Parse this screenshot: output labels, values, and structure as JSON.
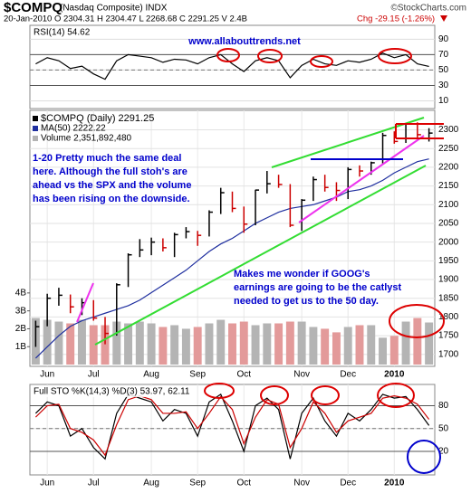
{
  "header": {
    "symbol": "$COMPQ",
    "name": "(Nasdaq Composite) INDX",
    "credit": "©StockCharts.com",
    "quote": "20-Jan-2010 O 2304.31 H 2304.47 L 2268.68 C 2291.25 V 2.4B",
    "change": "Chg -29.15 (-1.26%)"
  },
  "chart_data": [
    {
      "type": "line",
      "label": "RSI(14) 54.62",
      "annotation": "www.allabouttrends.net",
      "ylim": [
        0,
        108
      ],
      "yticks": [
        10,
        30,
        50,
        70,
        90
      ],
      "guides": [
        30,
        70
      ],
      "midline": 50,
      "series": [
        {
          "color": "#000000",
          "values": [
            58,
            66,
            62,
            52,
            55,
            45,
            38,
            62,
            70,
            68,
            66,
            60,
            64,
            63,
            58,
            66,
            70,
            58,
            48,
            62,
            66,
            62,
            40,
            56,
            64,
            58,
            56,
            62,
            60,
            64,
            72,
            66,
            70,
            58,
            54.62
          ]
        }
      ]
    },
    {
      "type": "ohlc",
      "categories": [
        null,
        "Jun",
        null,
        null,
        null,
        "Jul",
        null,
        null,
        null,
        null,
        "Aug",
        null,
        null,
        null,
        "Sep",
        null,
        null,
        null,
        "Oct",
        null,
        null,
        null,
        null,
        "Nov",
        null,
        null,
        null,
        "Dec",
        null,
        null,
        null,
        "2010",
        null,
        null,
        null
      ],
      "ylim": [
        1668,
        2352
      ],
      "yticks": [
        1700,
        1750,
        1800,
        1850,
        1900,
        1950,
        2000,
        2050,
        2100,
        2150,
        2200,
        2250,
        2300
      ],
      "y2lim": [
        -0.1,
        14.2
      ],
      "y2ticks": [
        {
          "value": 1,
          "label": "1B"
        },
        {
          "value": 2,
          "label": "2B"
        },
        {
          "value": 3,
          "label": "3B"
        },
        {
          "value": 4,
          "label": "4B"
        }
      ],
      "annotations": [
        [
          "1-20 Pretty much the same deal",
          "here. Although the full stoh's are",
          "ahead vs the SPX and the volume",
          "has been rising on the downside."
        ],
        [
          "Makes me wonder if GOOG's",
          "earnings are going to be the catlyst",
          "needed to get us to the 50 day."
        ]
      ],
      "series": [
        {
          "name": "$COMPQ (Daily) 2291.25",
          "color": "#000000",
          "down_color": "#cc0000",
          "high": [
            1790,
            1862,
            1878,
            1860,
            1850,
            1845,
            1800,
            1890,
            1970,
            2008,
            2012,
            2010,
            2025,
            2040,
            2030,
            2085,
            2145,
            2135,
            2095,
            2140,
            2190,
            2180,
            2155,
            2115,
            2175,
            2180,
            2160,
            2200,
            2205,
            2215,
            2292,
            2296,
            2318,
            2320,
            2304.47
          ],
          "low": [
            1720,
            1775,
            1830,
            1810,
            1805,
            1790,
            1727,
            1750,
            1880,
            1960,
            1965,
            1975,
            1960,
            2010,
            1990,
            2015,
            2075,
            2080,
            2025,
            2045,
            2130,
            2145,
            2040,
            2030,
            2110,
            2135,
            2110,
            2115,
            2175,
            2180,
            2210,
            2263,
            2265,
            2276,
            2268.68
          ],
          "values": [
            1774,
            1850,
            1858,
            1827,
            1838,
            1797,
            1756,
            1886,
            1966,
            1979,
            2000,
            1985,
            2020,
            2028,
            2018,
            2080,
            2132,
            2090,
            2048,
            2139,
            2156,
            2154,
            2045,
            2112,
            2167,
            2146,
            2138,
            2194,
            2190,
            2212,
            2285,
            2269,
            2317,
            2287,
            2291.25
          ]
        },
        {
          "name": "MA(50) 2222.22",
          "color": "#1f2f9f",
          "values": [
            1690,
            1720,
            1750,
            1775,
            1790,
            1800,
            1810,
            1820,
            1830,
            1845,
            1865,
            1885,
            1905,
            1925,
            1950,
            1975,
            1995,
            2010,
            2030,
            2050,
            2065,
            2080,
            2090,
            2095,
            2100,
            2110,
            2120,
            2135,
            2140,
            2150,
            2165,
            2185,
            2200,
            2215,
            2222.22
          ]
        },
        {
          "name": "Volume 2,351,892,480",
          "color": "#b4b4b4",
          "axis": "y2",
          "values": [
            2.6,
            2.5,
            2.4,
            2.3,
            2.5,
            2.2,
            2.2,
            2.4,
            2.3,
            2.4,
            2.3,
            2.1,
            2.2,
            2.0,
            2.1,
            2.3,
            2.5,
            2.3,
            2.4,
            2.2,
            2.3,
            2.3,
            2.4,
            2.4,
            2.1,
            2.0,
            1.8,
            2.1,
            2.2,
            2.2,
            1.5,
            1.6,
            2.4,
            2.6,
            2.35
          ]
        }
      ]
    },
    {
      "type": "line",
      "label": "Full STO %K(14,3) %D(3) 53.97, 62.11",
      "categories": [
        null,
        "Jun",
        null,
        null,
        null,
        "Jul",
        null,
        null,
        null,
        null,
        "Aug",
        null,
        null,
        null,
        "Sep",
        null,
        null,
        null,
        "Oct",
        null,
        null,
        null,
        null,
        "Nov",
        null,
        null,
        null,
        "Dec",
        null,
        null,
        null,
        "2010",
        null,
        null,
        null
      ],
      "ylim": [
        -11,
        108
      ],
      "yticks": [
        20,
        50,
        80
      ],
      "guides": [
        20,
        80
      ],
      "midline": 50,
      "series": [
        {
          "color": "#000000",
          "values": [
            70,
            85,
            80,
            40,
            50,
            25,
            10,
            70,
            95,
            90,
            85,
            60,
            75,
            70,
            40,
            85,
            95,
            60,
            20,
            80,
            90,
            75,
            10,
            70,
            90,
            60,
            40,
            70,
            60,
            75,
            95,
            90,
            92,
            75,
            53.97
          ]
        },
        {
          "color": "#cc0000",
          "values": [
            65,
            80,
            82,
            50,
            45,
            35,
            15,
            55,
            88,
            93,
            88,
            70,
            70,
            72,
            50,
            70,
            92,
            75,
            30,
            65,
            88,
            82,
            25,
            50,
            85,
            70,
            45,
            60,
            65,
            70,
            90,
            93,
            90,
            82,
            62.11
          ]
        }
      ]
    }
  ]
}
